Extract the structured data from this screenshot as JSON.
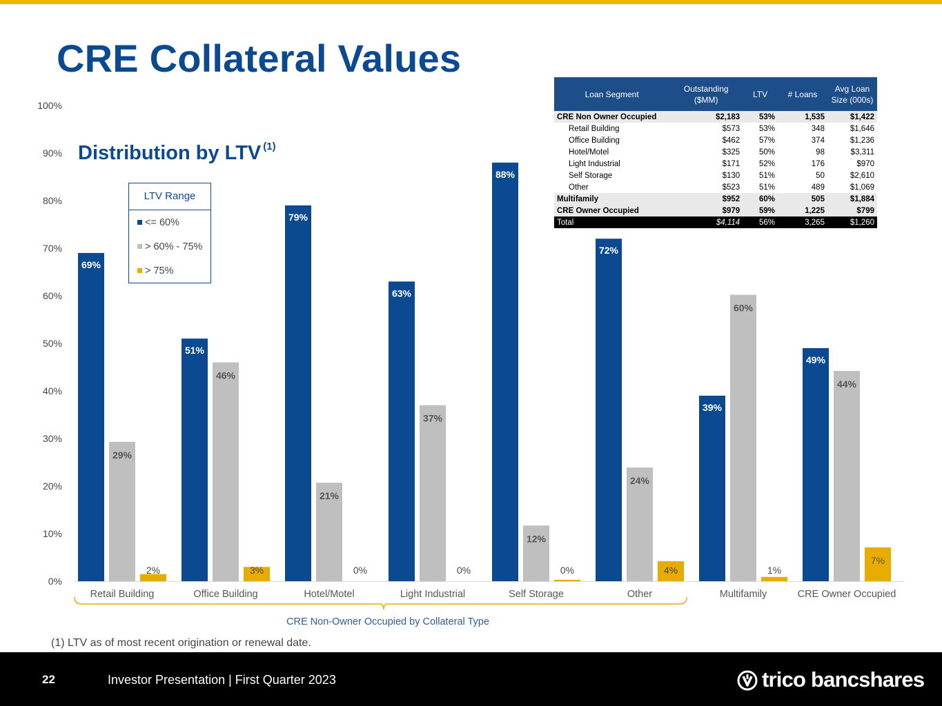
{
  "page": {
    "title": "CRE Collateral Values",
    "subtitle": "Distribution by LTV",
    "subtitle_sup": "(1)",
    "footnote": "(1)  LTV as of most recent origination or renewal date.",
    "page_number": "22",
    "footer_text": "Investor Presentation | First Quarter 2023",
    "logo_text": "trico bancshares",
    "colors": {
      "accent": "#f0b400",
      "brand_blue": "#0b4a91",
      "gray": "#bfbfbf",
      "gold": "#e8ac00"
    }
  },
  "legend": {
    "title": "LTV Range",
    "items": [
      {
        "label": "<= 60%",
        "color": "#0b4a91"
      },
      {
        "label": "> 60% - 75%",
        "color": "#bfbfbf"
      },
      {
        "label": "> 75%",
        "color": "#e8ac00"
      }
    ]
  },
  "chart_data": {
    "type": "bar",
    "title": "Distribution by LTV",
    "categories": [
      "Retail Building",
      "Office Building",
      "Hotel/Motel",
      "Light Industrial",
      "Self Storage",
      "Other",
      "Multifamily",
      "CRE Owner Occupied"
    ],
    "series": [
      {
        "name": "<= 60%",
        "color": "#0b4a91",
        "values": [
          69,
          51,
          79,
          63,
          88,
          72,
          39,
          49
        ],
        "labels": [
          "69%",
          "51%",
          "79%",
          "63%",
          "88%",
          "72%",
          "39%",
          "49%"
        ],
        "bar_values": [
          69,
          51,
          79,
          63,
          88,
          72,
          39,
          49
        ]
      },
      {
        "name": "> 60% - 75%",
        "color": "#bfbfbf",
        "values": [
          29,
          46,
          21,
          37,
          12,
          24,
          60,
          44
        ],
        "labels": [
          "29%",
          "46%",
          "21%",
          "37%",
          "12%",
          "24%",
          "60%",
          "44%"
        ],
        "bar_values": [
          29.3,
          46,
          20.7,
          37,
          11.7,
          23.9,
          60.2,
          44.2
        ]
      },
      {
        "name": "> 75%",
        "color": "#e8ac00",
        "values": [
          2,
          3,
          0,
          0,
          0,
          4,
          1,
          7
        ],
        "labels": [
          "2%",
          "3%",
          "0%",
          "0%",
          "0%",
          "4%",
          "1%",
          "7%"
        ],
        "bar_values": [
          1.5,
          3,
          0,
          0,
          0.3,
          4.2,
          0.9,
          7.1
        ]
      }
    ],
    "yticks": [
      "0%",
      "10%",
      "20%",
      "30%",
      "40%",
      "50%",
      "60%",
      "70%",
      "80%",
      "90%",
      "100%"
    ],
    "ylim": [
      0,
      100
    ],
    "bracket_label": "CRE Non-Owner Occupied by Collateral Type",
    "bracket_span": [
      "Retail Building",
      "Other"
    ],
    "grid": false,
    "legend_position": "upper-left"
  },
  "table": {
    "headers": [
      "Loan Segment",
      "Outstanding ($MM)",
      "LTV",
      "# Loans",
      "Avg Loan Size (000s)"
    ],
    "rows": [
      {
        "kind": "group",
        "cells": [
          "CRE Non Owner Occupied",
          "$2,183",
          "53%",
          "1,535",
          "$1,422"
        ]
      },
      {
        "kind": "sub",
        "cells": [
          "Retail Building",
          "$573",
          "53%",
          "348",
          "$1,646"
        ]
      },
      {
        "kind": "sub",
        "cells": [
          "Office Building",
          "$462",
          "57%",
          "374",
          "$1,236"
        ]
      },
      {
        "kind": "sub",
        "cells": [
          "Hotel/Motel",
          "$325",
          "50%",
          "98",
          "$3,311"
        ]
      },
      {
        "kind": "sub",
        "cells": [
          "Light Industrial",
          "$171",
          "52%",
          "176",
          "$970"
        ]
      },
      {
        "kind": "sub",
        "cells": [
          "Self Storage",
          "$130",
          "51%",
          "50",
          "$2,610"
        ]
      },
      {
        "kind": "sub",
        "cells": [
          "Other",
          "$523",
          "51%",
          "489",
          "$1,069"
        ]
      },
      {
        "kind": "group",
        "cells": [
          "Multifamily",
          "$952",
          "60%",
          "505",
          "$1,884"
        ]
      },
      {
        "kind": "group",
        "cells": [
          "CRE Owner Occupied",
          "$979",
          "59%",
          "1,225",
          "$799"
        ]
      },
      {
        "kind": "total",
        "cells": [
          "Total",
          "$4,114",
          "56%",
          "3,265",
          "$1,260"
        ]
      }
    ]
  }
}
